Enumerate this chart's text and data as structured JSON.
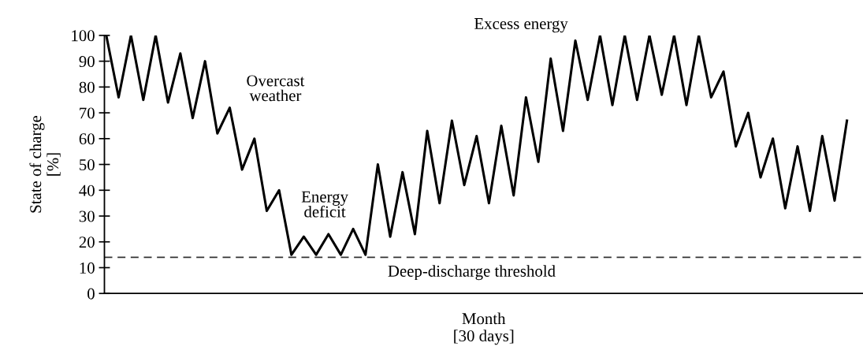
{
  "chart_data": {
    "type": "line",
    "xlabel": "Month\n[30 days]",
    "ylabel": "State of charge\n[%]",
    "categories": [
      null,
      null,
      null,
      null,
      null,
      null,
      null,
      null,
      null,
      null,
      null,
      null,
      null,
      null,
      null,
      null,
      null,
      null,
      null,
      null,
      null,
      null,
      null,
      null,
      null,
      null,
      null,
      null,
      null,
      null,
      null,
      null,
      null,
      null,
      null,
      null,
      null,
      null,
      null,
      null,
      null,
      null,
      null,
      null,
      null,
      null,
      null,
      null,
      null,
      null,
      null,
      null,
      null,
      null,
      null,
      null,
      null,
      null,
      null,
      null,
      null
    ],
    "series": [
      {
        "color": "#000000",
        "values": [
          100,
          76,
          100,
          75,
          100,
          74,
          93,
          68,
          90,
          62,
          72,
          48,
          60,
          32,
          40,
          15,
          22,
          15,
          23,
          15,
          25,
          15,
          50,
          22,
          47,
          23,
          63,
          35,
          67,
          42,
          61,
          35,
          65,
          38,
          76,
          51,
          91,
          63,
          98,
          75,
          100,
          73,
          100,
          75,
          100,
          77,
          100,
          73,
          100,
          76,
          86,
          57,
          70,
          45,
          60,
          33,
          57,
          32,
          61,
          36,
          67
        ]
      }
    ],
    "ylim": [
      0,
      100
    ],
    "yticks": [
      0,
      10,
      20,
      30,
      40,
      50,
      60,
      70,
      80,
      90,
      100
    ],
    "ref_lines": [
      {
        "axis": "y",
        "value": 14,
        "label": "Deep-discharge threshold",
        "color": "#333333",
        "line_style": "dashed"
      }
    ],
    "annotations": [
      "Overcast weather",
      "Energy deficit",
      "Excess energy"
    ],
    "grid": false,
    "legend": false,
    "marker": "none",
    "line_style": "solid"
  }
}
